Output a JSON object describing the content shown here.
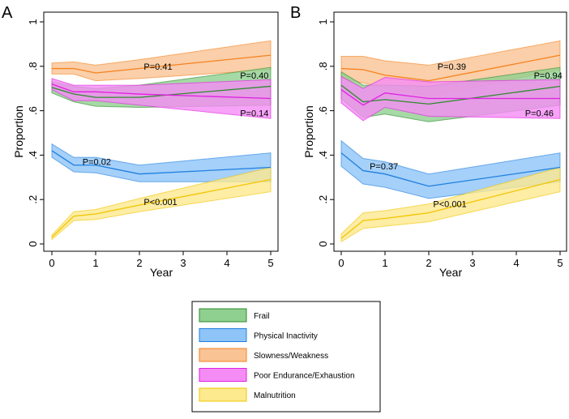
{
  "chart_data": [
    {
      "type": "area",
      "panel_label": "A",
      "xlabel": "Year",
      "ylabel": "Proportion",
      "xlim": [
        0,
        5
      ],
      "ylim": [
        0,
        1
      ],
      "xticks": [
        "0",
        "1",
        "2",
        "3",
        "4",
        "5"
      ],
      "yticks": [
        "0",
        ".2",
        ".4",
        ".6",
        ".8",
        "1"
      ],
      "x": [
        0,
        0.5,
        1,
        2,
        5
      ],
      "grid": false,
      "series": [
        {
          "name": "Frail",
          "mean": [
            0.705,
            0.675,
            0.66,
            0.66,
            0.71
          ],
          "lower": [
            0.68,
            0.64,
            0.62,
            0.615,
            0.625
          ],
          "upper": [
            0.73,
            0.71,
            0.7,
            0.715,
            0.795
          ]
        },
        {
          "name": "Physical Inactivity",
          "mean": [
            0.42,
            0.355,
            0.355,
            0.315,
            0.345
          ],
          "lower": [
            0.39,
            0.325,
            0.32,
            0.28,
            0.28
          ],
          "upper": [
            0.45,
            0.39,
            0.39,
            0.355,
            0.41
          ]
        },
        {
          "name": "Slowness/Weakness",
          "mean": [
            0.79,
            0.79,
            0.77,
            0.79,
            0.85
          ],
          "lower": [
            0.765,
            0.765,
            0.735,
            0.745,
            0.785
          ],
          "upper": [
            0.815,
            0.82,
            0.805,
            0.83,
            0.915
          ]
        },
        {
          "name": "Poor Endurance/Exhaustion",
          "mean": [
            0.72,
            0.685,
            0.685,
            0.675,
            0.655
          ],
          "lower": [
            0.695,
            0.645,
            0.645,
            0.625,
            0.565
          ],
          "upper": [
            0.745,
            0.715,
            0.715,
            0.715,
            0.74
          ]
        },
        {
          "name": "Malnutrition",
          "mean": [
            0.03,
            0.125,
            0.135,
            0.175,
            0.29
          ],
          "lower": [
            0.02,
            0.105,
            0.11,
            0.145,
            0.235
          ],
          "upper": [
            0.04,
            0.145,
            0.155,
            0.205,
            0.345
          ]
        }
      ],
      "annotations": [
        {
          "text": "P=0.41",
          "x": 2.1,
          "y": 0.8
        },
        {
          "text": "P=0.40",
          "x": 4.3,
          "y": 0.76
        },
        {
          "text": "P=0.14",
          "x": 4.3,
          "y": 0.59
        },
        {
          "text": "P=0.02",
          "x": 0.7,
          "y": 0.37
        },
        {
          "text": "P<0.001",
          "x": 2.1,
          "y": 0.19
        }
      ]
    },
    {
      "type": "area",
      "panel_label": "B",
      "xlabel": "Year",
      "ylabel": "Proportion",
      "xlim": [
        0,
        5
      ],
      "ylim": [
        0,
        1
      ],
      "xticks": [
        "0",
        "1",
        "2",
        "3",
        "4",
        "5"
      ],
      "yticks": [
        "0",
        ".2",
        ".4",
        ".6",
        ".8",
        "1"
      ],
      "x": [
        0,
        0.5,
        1,
        2,
        5
      ],
      "grid": false,
      "series": [
        {
          "name": "Frail",
          "mean": [
            0.715,
            0.64,
            0.65,
            0.63,
            0.71
          ],
          "lower": [
            0.655,
            0.57,
            0.585,
            0.55,
            0.625
          ],
          "upper": [
            0.775,
            0.715,
            0.715,
            0.71,
            0.795
          ]
        },
        {
          "name": "Physical Inactivity",
          "mean": [
            0.41,
            0.33,
            0.315,
            0.26,
            0.345
          ],
          "lower": [
            0.35,
            0.27,
            0.255,
            0.205,
            0.28
          ],
          "upper": [
            0.465,
            0.385,
            0.37,
            0.315,
            0.41
          ]
        },
        {
          "name": "Slowness/Weakness",
          "mean": [
            0.79,
            0.785,
            0.76,
            0.735,
            0.85
          ],
          "lower": [
            0.745,
            0.725,
            0.705,
            0.665,
            0.785
          ],
          "upper": [
            0.845,
            0.845,
            0.825,
            0.805,
            0.915
          ]
        },
        {
          "name": "Poor Endurance/Exhaustion",
          "mean": [
            0.695,
            0.625,
            0.68,
            0.655,
            0.655
          ],
          "lower": [
            0.635,
            0.555,
            0.615,
            0.575,
            0.565
          ],
          "upper": [
            0.755,
            0.7,
            0.75,
            0.73,
            0.74
          ]
        },
        {
          "name": "Malnutrition",
          "mean": [
            0.025,
            0.105,
            0.115,
            0.14,
            0.29
          ],
          "lower": [
            0.01,
            0.07,
            0.08,
            0.1,
            0.235
          ],
          "upper": [
            0.045,
            0.14,
            0.15,
            0.18,
            0.345
          ]
        }
      ],
      "annotations": [
        {
          "text": "P=0.39",
          "x": 2.2,
          "y": 0.8
        },
        {
          "text": "P=0.94",
          "x": 4.4,
          "y": 0.76
        },
        {
          "text": "P=0.46",
          "x": 4.2,
          "y": 0.59
        },
        {
          "text": "P=0.37",
          "x": 0.65,
          "y": 0.35
        },
        {
          "text": "P<0.001",
          "x": 2.1,
          "y": 0.18
        }
      ]
    }
  ],
  "legend": {
    "placement": "bottom-center",
    "items": [
      {
        "label": "Frail",
        "fill": "#8fcf8f",
        "line": "#2e8b2e"
      },
      {
        "label": "Physical Inactivity",
        "fill": "#8ec4f7",
        "line": "#1f7fe0"
      },
      {
        "label": "Slowness/Weakness",
        "fill": "#f9c394",
        "line": "#f5821f"
      },
      {
        "label": "Poor Endurance/Exhaustion",
        "fill": "#f58cf5",
        "line": "#e020e0"
      },
      {
        "label": "Malnutrition",
        "fill": "#fde98e",
        "line": "#f2c500"
      }
    ]
  }
}
